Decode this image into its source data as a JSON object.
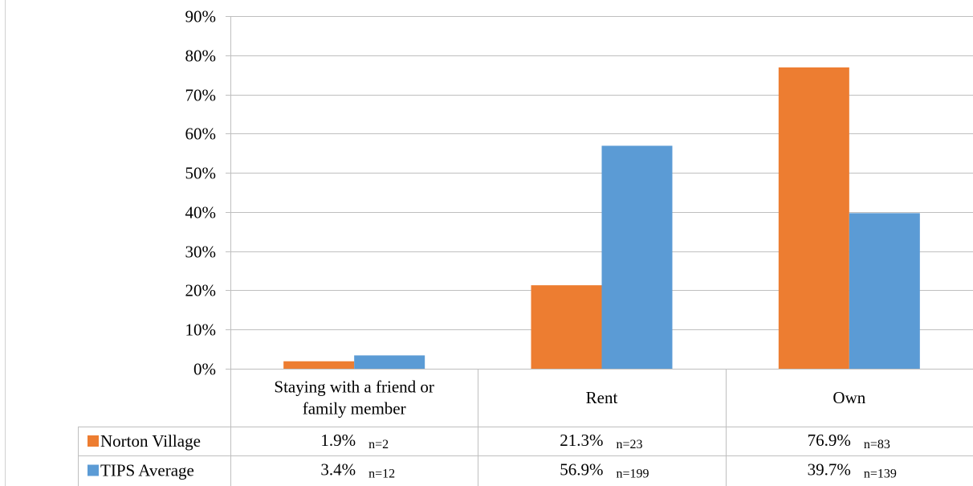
{
  "chart_data": {
    "type": "bar",
    "categories": [
      [
        "Staying with a friend or",
        "family member"
      ],
      [
        "Rent"
      ],
      [
        "Own"
      ]
    ],
    "series": [
      {
        "name": "Norton Village",
        "color": "#ED7D31",
        "values": [
          1.9,
          21.3,
          76.9
        ],
        "value_labels": [
          "1.9%",
          "21.3%",
          "76.9%"
        ],
        "n_labels": [
          "n=2",
          "n=23",
          "n=83"
        ]
      },
      {
        "name": "TIPS Average",
        "color": "#5B9BD5",
        "values": [
          3.4,
          56.9,
          39.7
        ],
        "value_labels": [
          "3.4%",
          "56.9%",
          "39.7%"
        ],
        "n_labels": [
          "n=12",
          "n=199",
          "n=139"
        ]
      }
    ],
    "yticks": [
      "0%",
      "10%",
      "20%",
      "30%",
      "40%",
      "50%",
      "60%",
      "70%",
      "80%",
      "90%"
    ],
    "ylim": [
      0,
      90
    ],
    "grid": true,
    "legend": "data-table"
  }
}
